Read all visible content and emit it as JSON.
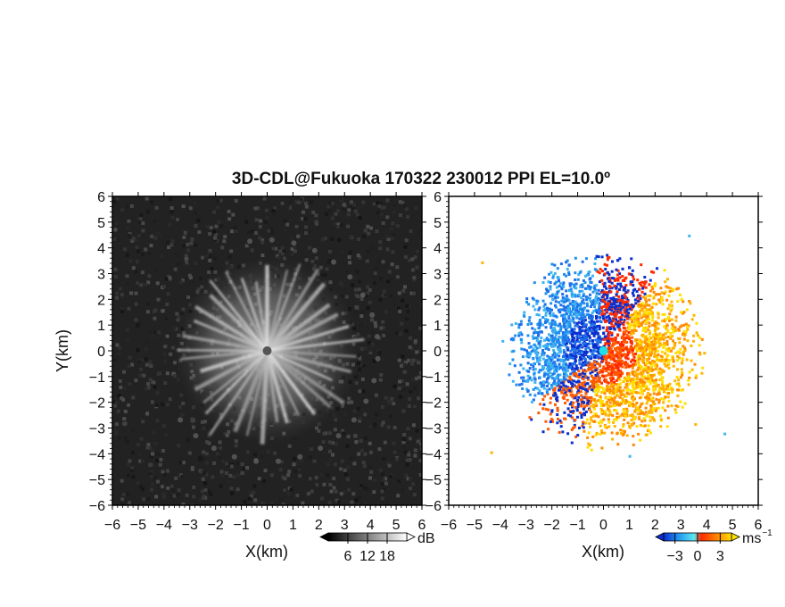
{
  "title": "3D-CDL@Fukuoka 170322 230012 PPI EL=10.0º",
  "chart_data": [
    {
      "type": "heatmap",
      "panel": "left",
      "field": "backscatter",
      "xlabel": "X(km)",
      "ylabel": "Y(km)",
      "xlim": [
        -6,
        6
      ],
      "ylim": [
        -6,
        6
      ],
      "x_ticks": [
        "−6",
        "−5",
        "−4",
        "−3",
        "−2",
        "−1",
        "0",
        "1",
        "2",
        "3",
        "4",
        "5",
        "6"
      ],
      "y_ticks": [
        "−6",
        "−5",
        "−4",
        "−3",
        "−2",
        "−1",
        "0",
        "1",
        "2",
        "3",
        "4",
        "5",
        "6"
      ],
      "colorbar": {
        "unit": "dB",
        "ticks": [
          "6",
          "12",
          "18"
        ],
        "tick_values": [
          6,
          12,
          18
        ],
        "range": [
          0,
          24
        ],
        "colors": [
          "#000000",
          "#ffffff"
        ]
      },
      "features": {
        "bright_radius_km": 3.6,
        "ring_radius_km": 4.3,
        "spoke_count": 36
      }
    },
    {
      "type": "heatmap",
      "panel": "right",
      "field": "radial_velocity",
      "xlabel": "X(km)",
      "xlim": [
        -6,
        6
      ],
      "ylim": [
        -6,
        6
      ],
      "x_ticks": [
        "−6",
        "−5",
        "−4",
        "−3",
        "−2",
        "−1",
        "0",
        "1",
        "2",
        "3",
        "4",
        "5",
        "6"
      ],
      "y_ticks": [
        "−6",
        "−5",
        "−4",
        "−3",
        "−2",
        "−1",
        "0",
        "1",
        "2",
        "3",
        "4",
        "5",
        "6"
      ],
      "colorbar": {
        "unit": "ms",
        "unit_exponent": "−1",
        "ticks": [
          "−3",
          "0",
          "3"
        ],
        "tick_values": [
          -3,
          0,
          3
        ],
        "range": [
          -4.5,
          4.5
        ],
        "colors": [
          "#0a2fcf",
          "#1f8ff0",
          "#5ce8f0",
          "#ff2a00",
          "#ff8a00",
          "#ffe000"
        ]
      },
      "features": {
        "data_radius_km": 3.5,
        "center_marker_color": "#1ee0e8",
        "negative_sector_deg": [
          95,
          215
        ],
        "positive_sector_deg": [
          255,
          55
        ]
      }
    }
  ]
}
